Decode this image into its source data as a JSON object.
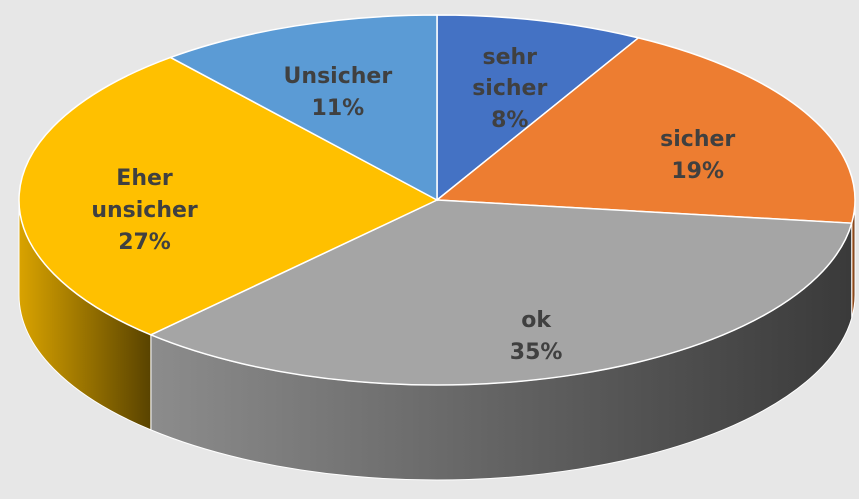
{
  "chart_data": {
    "type": "pie",
    "categories": [
      "sehr sicher",
      "sicher",
      "ok",
      "Eher unsicher",
      "Unsicher"
    ],
    "values": [
      8,
      19,
      35,
      27,
      11
    ],
    "value_labels": [
      "8%",
      "19%",
      "35%",
      "27%",
      "11%"
    ],
    "colors": [
      "#4472c4",
      "#ed7d31",
      "#a5a5a5",
      "#ffc000",
      "#5b9bd5"
    ]
  }
}
